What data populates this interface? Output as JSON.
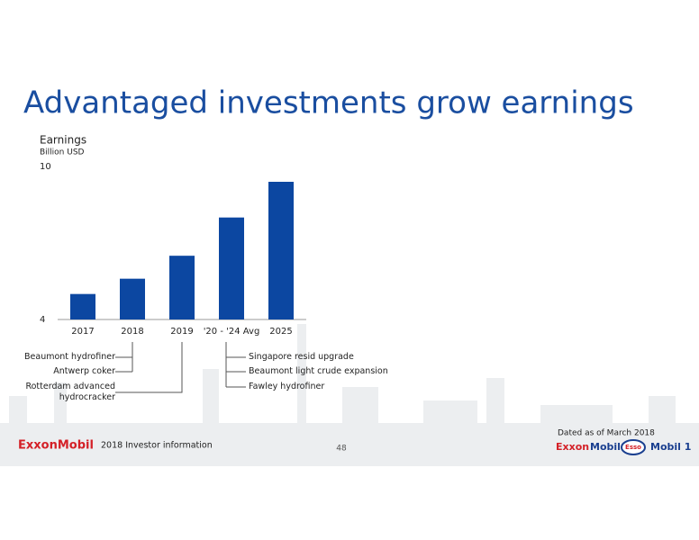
{
  "title": "Advantaged investments grow earnings",
  "chart_data": {
    "type": "bar",
    "axis_label": "Earnings",
    "unit": "Billion USD",
    "categories": [
      "2017",
      "2018",
      "2019",
      "'20 - '24 Avg",
      "2025"
    ],
    "values": [
      5.0,
      5.6,
      6.5,
      8.0,
      9.4
    ],
    "color": "#0c47a1",
    "ylim": [
      4,
      10
    ],
    "yticks": [
      4,
      10
    ],
    "grid": false
  },
  "annotations": {
    "left": [
      "Beaumont hydrofiner",
      "Antwerp coker",
      "Rotterdam advanced hydrocracker"
    ],
    "right": [
      "Singapore resid upgrade",
      "Beaumont light crude expansion",
      "Fawley hydrofiner"
    ]
  },
  "footer": {
    "logo": "ExxonMobil",
    "text": "2018 Investor information",
    "page": "48",
    "dated": "Dated as of March 2018",
    "brands": [
      "Exxon",
      "Mobil",
      "Esso",
      "Mobil 1"
    ]
  }
}
